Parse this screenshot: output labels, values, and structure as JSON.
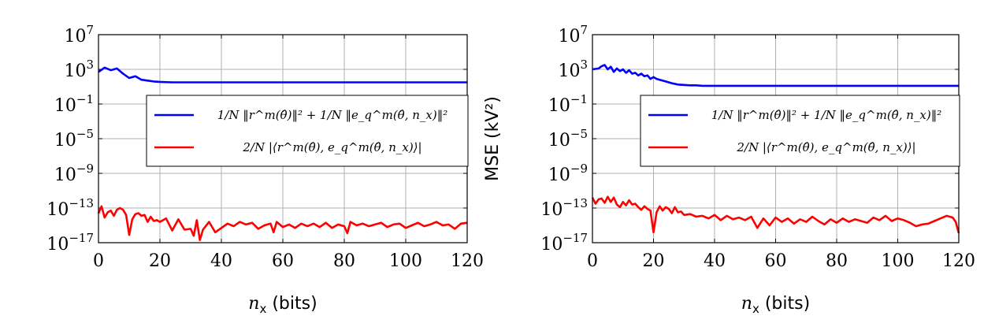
{
  "chart_data": [
    {
      "type": "line",
      "title": "",
      "xlabel_var": "n",
      "xlabel_sub": "x",
      "xlabel_unit": "(bits)",
      "ylabel": "",
      "xlim": [
        0,
        120
      ],
      "ylim_log10": [
        -17,
        7
      ],
      "x_ticks": [
        0,
        20,
        40,
        60,
        80,
        100,
        120
      ],
      "y_tick_exponents": [
        7,
        3,
        -1,
        -5,
        -9,
        -13,
        -17
      ],
      "grid": true,
      "legend_position": "right",
      "legend": [
        "1/N ‖r^m(θ̂)‖² + 1/N ‖e_q^m(θ̂, n_x)‖²",
        "2/N |⟨r^m(θ̂), e_q^m(θ̂, n_x)⟩|"
      ],
      "series": [
        {
          "name": "1/N ‖r^m(θ̂)‖² + 1/N ‖e_q^m(θ̂, n_x)‖²",
          "color": "#0000ff",
          "x": [
            0,
            2,
            4,
            6,
            8,
            10,
            12,
            14,
            16,
            18,
            20,
            24,
            30,
            40,
            60,
            80,
            100,
            120
          ],
          "y_log10": [
            2.7,
            3.2,
            2.9,
            3.1,
            2.5,
            2.0,
            2.2,
            1.8,
            1.7,
            1.6,
            1.55,
            1.5,
            1.5,
            1.5,
            1.5,
            1.5,
            1.5,
            1.5
          ]
        },
        {
          "name": "2/N |⟨r^m(θ̂), e_q^m(θ̂, n_x)⟩|",
          "color": "#ff0000",
          "x": [
            0,
            1,
            2,
            3,
            4,
            5,
            6,
            7,
            8,
            9,
            10,
            11,
            12,
            13,
            14,
            15,
            16,
            17,
            18,
            19,
            20,
            22,
            24,
            26,
            28,
            30,
            31,
            32,
            33,
            34,
            36,
            38,
            40,
            42,
            44,
            46,
            48,
            50,
            52,
            54,
            56,
            57,
            58,
            60,
            62,
            64,
            66,
            68,
            70,
            72,
            74,
            76,
            78,
            80,
            81,
            82,
            84,
            86,
            88,
            90,
            92,
            94,
            96,
            98,
            100,
            102,
            104,
            106,
            108,
            110,
            112,
            114,
            116,
            118,
            120
          ],
          "y_log10": [
            -13.6,
            -12.8,
            -14.1,
            -13.5,
            -13.3,
            -13.9,
            -13.2,
            -13.0,
            -13.2,
            -13.8,
            -16.1,
            -14.3,
            -13.7,
            -13.6,
            -13.9,
            -13.8,
            -14.6,
            -14.0,
            -14.5,
            -14.4,
            -14.6,
            -14.2,
            -15.6,
            -14.3,
            -15.5,
            -15.4,
            -16.2,
            -14.4,
            -16.7,
            -15.5,
            -14.6,
            -15.8,
            -15.3,
            -14.8,
            -15.1,
            -14.6,
            -14.9,
            -14.7,
            -15.4,
            -15.0,
            -14.8,
            -15.8,
            -14.6,
            -15.2,
            -14.9,
            -15.3,
            -14.8,
            -15.1,
            -14.8,
            -15.2,
            -14.7,
            -15.3,
            -14.9,
            -15.1,
            -15.9,
            -14.6,
            -15.0,
            -14.8,
            -15.1,
            -14.9,
            -14.7,
            -15.2,
            -14.9,
            -14.8,
            -15.3,
            -15.0,
            -14.7,
            -15.1,
            -14.9,
            -14.6,
            -15.0,
            -14.9,
            -15.4,
            -14.8,
            -14.7
          ]
        }
      ]
    },
    {
      "type": "line",
      "title": "",
      "xlabel_var": "n",
      "xlabel_sub": "x",
      "xlabel_unit": "(bits)",
      "ylabel": "MSE (kV²)",
      "xlim": [
        0,
        120
      ],
      "ylim_log10": [
        -17,
        7
      ],
      "x_ticks": [
        0,
        20,
        40,
        60,
        80,
        100,
        120
      ],
      "y_tick_exponents": [
        7,
        3,
        -1,
        -5,
        -9,
        -13,
        -17
      ],
      "grid": true,
      "legend_position": "right",
      "legend": [
        "1/N ‖r^m(θ̂)‖² + 1/N ‖e_q^m(θ̂, n_x)‖²",
        "2/N |⟨r^m(θ̂), e_q^m(θ̂, n_x)⟩|"
      ],
      "series": [
        {
          "name": "1/N ‖r^m(θ̂)‖² + 1/N ‖e_q^m(θ̂, n_x)‖²",
          "color": "#0000ff",
          "x": [
            0,
            2,
            3,
            4,
            5,
            6,
            7,
            8,
            9,
            10,
            11,
            12,
            13,
            14,
            15,
            16,
            17,
            18,
            19,
            20,
            21,
            22,
            24,
            26,
            28,
            30,
            32,
            34,
            36,
            40,
            60,
            80,
            100,
            120
          ],
          "y_log10": [
            3.0,
            3.1,
            3.35,
            3.5,
            3.0,
            3.3,
            2.7,
            3.1,
            2.8,
            3.0,
            2.6,
            2.9,
            2.5,
            2.6,
            2.3,
            2.5,
            2.2,
            2.3,
            1.9,
            2.1,
            1.9,
            1.8,
            1.6,
            1.4,
            1.25,
            1.2,
            1.15,
            1.15,
            1.1,
            1.1,
            1.1,
            1.1,
            1.1,
            1.1
          ]
        },
        {
          "name": "2/N |⟨r^m(θ̂), e_q^m(θ̂, n_x)⟩|",
          "color": "#ff0000",
          "x": [
            0,
            1,
            2,
            3,
            4,
            5,
            6,
            7,
            8,
            9,
            10,
            11,
            12,
            13,
            14,
            15,
            16,
            17,
            18,
            19,
            20,
            21,
            22,
            23,
            24,
            25,
            26,
            27,
            28,
            29,
            30,
            32,
            34,
            36,
            38,
            40,
            42,
            44,
            46,
            48,
            50,
            52,
            54,
            56,
            58,
            60,
            62,
            64,
            66,
            68,
            70,
            72,
            74,
            76,
            78,
            80,
            82,
            84,
            86,
            88,
            90,
            92,
            94,
            96,
            98,
            100,
            102,
            104,
            106,
            108,
            110,
            112,
            114,
            116,
            118,
            119,
            120
          ],
          "y_log10": [
            -11.8,
            -12.5,
            -12.0,
            -11.9,
            -12.4,
            -11.7,
            -12.3,
            -11.8,
            -12.6,
            -12.9,
            -12.3,
            -12.7,
            -12.1,
            -12.6,
            -12.5,
            -12.9,
            -13.2,
            -12.8,
            -13.1,
            -13.3,
            -15.8,
            -13.5,
            -12.8,
            -13.3,
            -12.9,
            -13.1,
            -13.6,
            -12.9,
            -13.5,
            -13.4,
            -13.8,
            -13.7,
            -14.0,
            -13.9,
            -14.2,
            -13.8,
            -14.4,
            -13.9,
            -14.3,
            -14.1,
            -14.4,
            -14.0,
            -15.3,
            -14.2,
            -15.0,
            -14.1,
            -14.6,
            -14.2,
            -14.8,
            -14.3,
            -14.6,
            -14.0,
            -14.5,
            -14.9,
            -14.3,
            -14.7,
            -14.2,
            -14.6,
            -14.3,
            -14.5,
            -14.7,
            -14.1,
            -14.4,
            -13.9,
            -14.5,
            -14.2,
            -14.4,
            -14.7,
            -15.1,
            -14.9,
            -14.8,
            -14.5,
            -14.2,
            -13.9,
            -14.1,
            -14.6,
            -15.9
          ]
        }
      ]
    }
  ]
}
